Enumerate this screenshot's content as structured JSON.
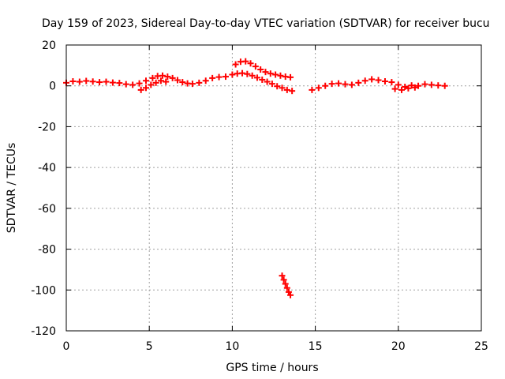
{
  "chart_data": {
    "type": "scatter",
    "title": "Day 159 of 2023, Sidereal Day-to-day VTEC variation (SDTVAR) for receiver bucu",
    "xlabel": "GPS time / hours",
    "ylabel": "SDTVAR / TECUs",
    "xlim": [
      0,
      25
    ],
    "ylim": [
      -120,
      20
    ],
    "xticks": [
      0,
      5,
      10,
      15,
      20,
      25
    ],
    "yticks": [
      -120,
      -100,
      -80,
      -60,
      -40,
      -20,
      0,
      20
    ],
    "grid": true,
    "marker": "plus",
    "colors": {
      "series": "#ff0000",
      "grid": "#a0a0a0",
      "axis": "#000000"
    },
    "series": [
      {
        "name": "SDTVAR",
        "points": [
          [
            0.0,
            1.5
          ],
          [
            0.4,
            2.2
          ],
          [
            0.8,
            2.0
          ],
          [
            1.2,
            2.4
          ],
          [
            1.6,
            2.1
          ],
          [
            2.0,
            1.8
          ],
          [
            2.4,
            2.0
          ],
          [
            2.8,
            1.6
          ],
          [
            3.2,
            1.4
          ],
          [
            3.6,
            0.8
          ],
          [
            4.0,
            0.5
          ],
          [
            4.4,
            1.2
          ],
          [
            4.8,
            2.5
          ],
          [
            5.2,
            3.8
          ],
          [
            5.5,
            4.8
          ],
          [
            5.8,
            5.0
          ],
          [
            6.1,
            4.5
          ],
          [
            6.4,
            3.8
          ],
          [
            6.7,
            2.8
          ],
          [
            7.0,
            1.8
          ],
          [
            7.3,
            1.2
          ],
          [
            7.6,
            1.0
          ],
          [
            8.0,
            1.5
          ],
          [
            8.4,
            2.5
          ],
          [
            8.8,
            3.8
          ],
          [
            9.2,
            4.3
          ],
          [
            9.6,
            4.5
          ],
          [
            10.0,
            5.5
          ],
          [
            10.3,
            6.0
          ],
          [
            10.6,
            6.2
          ],
          [
            10.9,
            5.8
          ],
          [
            11.2,
            5.0
          ],
          [
            11.5,
            4.0
          ],
          [
            11.8,
            3.0
          ],
          [
            12.1,
            2.0
          ],
          [
            12.4,
            1.0
          ],
          [
            12.7,
            -0.2
          ],
          [
            13.0,
            -1.0
          ],
          [
            13.3,
            -2.0
          ],
          [
            13.6,
            -2.5
          ],
          [
            4.5,
            -2.0
          ],
          [
            4.8,
            -1.0
          ],
          [
            5.1,
            0.5
          ],
          [
            5.4,
            1.5
          ],
          [
            5.7,
            2.5
          ],
          [
            6.0,
            2.0
          ],
          [
            10.2,
            10.5
          ],
          [
            10.5,
            11.8
          ],
          [
            10.8,
            12.0
          ],
          [
            11.1,
            11.0
          ],
          [
            11.4,
            9.5
          ],
          [
            11.7,
            8.0
          ],
          [
            12.0,
            6.8
          ],
          [
            12.3,
            6.0
          ],
          [
            12.6,
            5.5
          ],
          [
            12.9,
            5.0
          ],
          [
            13.2,
            4.5
          ],
          [
            13.5,
            4.2
          ],
          [
            13.0,
            -93.0
          ],
          [
            13.1,
            -95.0
          ],
          [
            13.2,
            -97.0
          ],
          [
            13.3,
            -99.0
          ],
          [
            13.4,
            -101.0
          ],
          [
            13.5,
            -102.5
          ],
          [
            14.8,
            -2.0
          ],
          [
            15.2,
            -1.0
          ],
          [
            15.6,
            0.0
          ],
          [
            16.0,
            1.0
          ],
          [
            16.4,
            1.2
          ],
          [
            16.8,
            0.8
          ],
          [
            17.2,
            0.5
          ],
          [
            17.6,
            1.5
          ],
          [
            18.0,
            2.5
          ],
          [
            18.4,
            3.2
          ],
          [
            18.8,
            2.8
          ],
          [
            19.2,
            2.2
          ],
          [
            19.6,
            1.8
          ],
          [
            20.0,
            0.5
          ],
          [
            20.4,
            -0.5
          ],
          [
            20.8,
            0.2
          ],
          [
            21.2,
            0.0
          ],
          [
            21.6,
            0.8
          ],
          [
            22.0,
            0.5
          ],
          [
            22.4,
            0.2
          ],
          [
            22.8,
            0.0
          ],
          [
            19.8,
            -1.5
          ],
          [
            20.2,
            -2.0
          ],
          [
            20.6,
            -1.2
          ],
          [
            21.0,
            -0.8
          ]
        ]
      }
    ]
  }
}
